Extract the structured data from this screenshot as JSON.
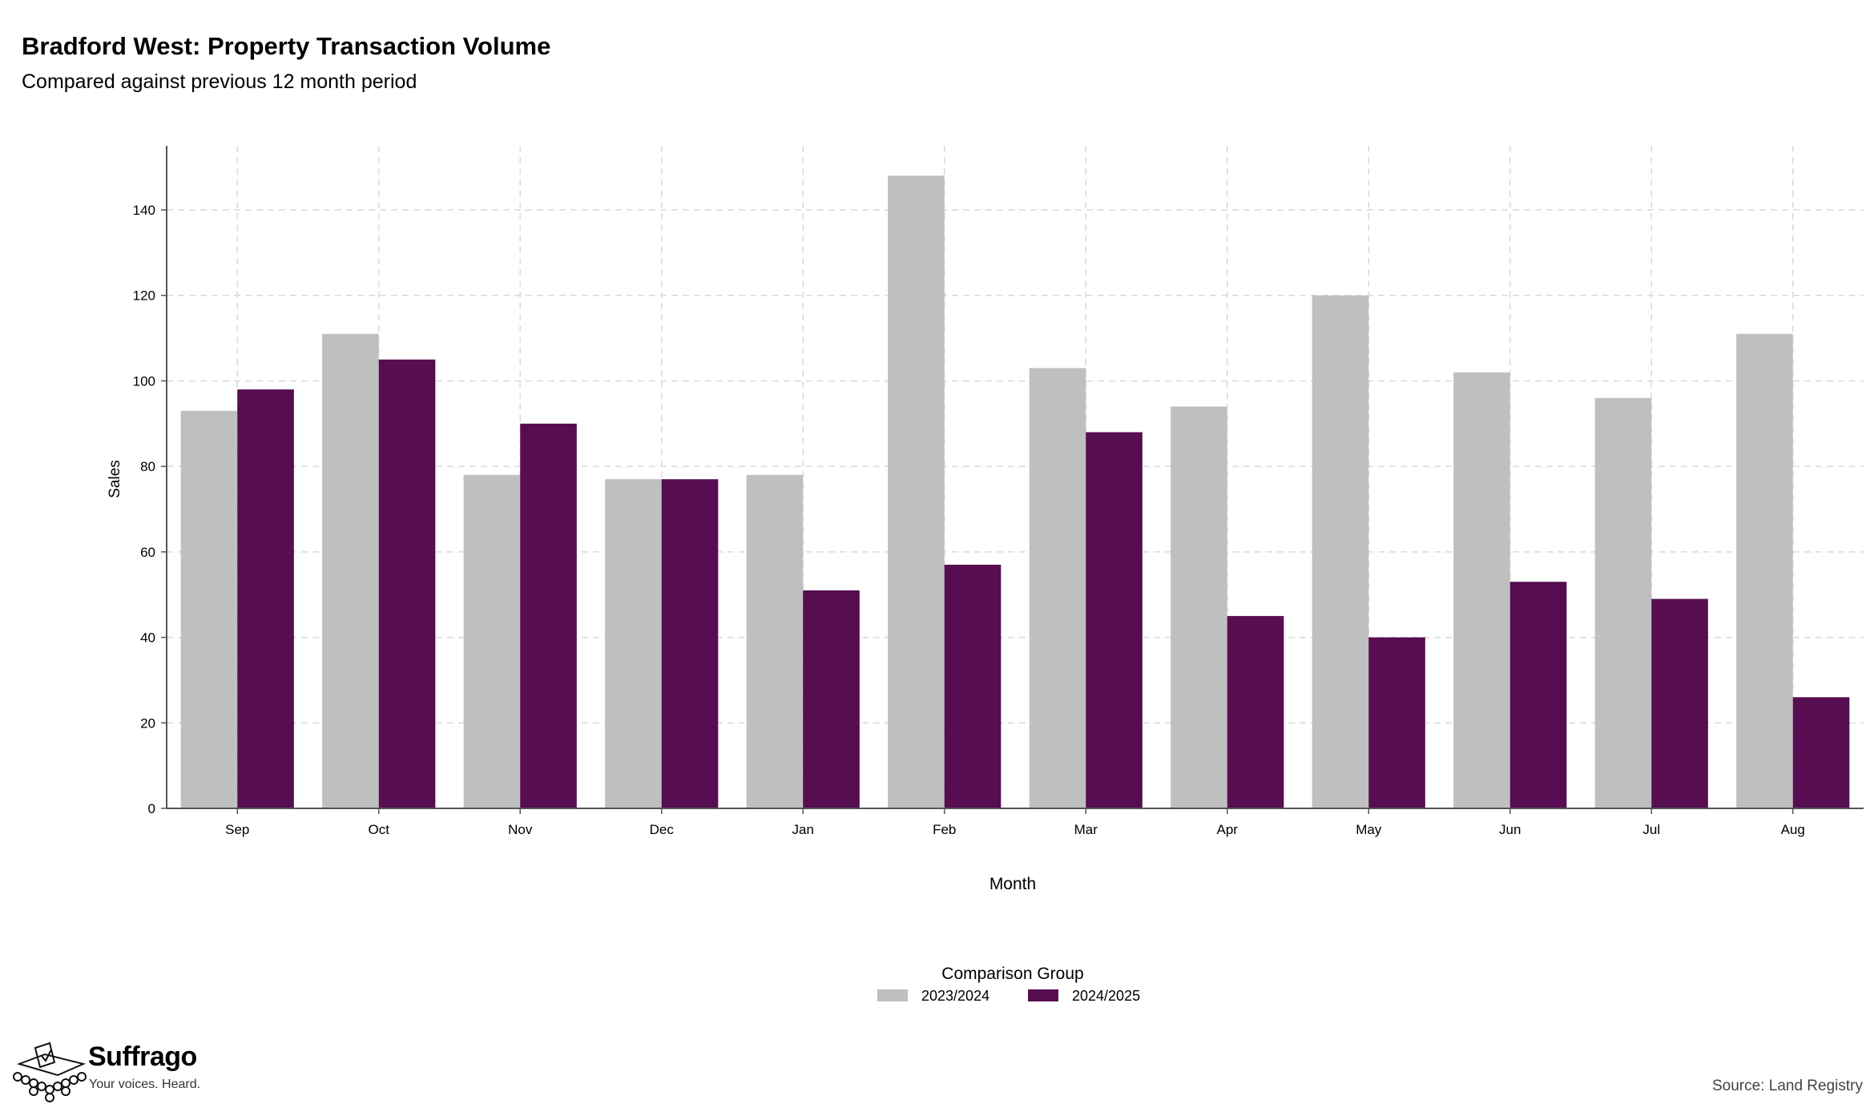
{
  "header": {
    "title": "Bradford West: Property Transaction Volume",
    "subtitle": "Compared against previous 12 month period"
  },
  "chart_data": {
    "type": "bar",
    "title": "Bradford West: Property Transaction Volume",
    "subtitle": "Compared against previous 12 month period",
    "xlabel": "Month",
    "ylabel": "Sales",
    "categories": [
      "Sep",
      "Oct",
      "Nov",
      "Dec",
      "Jan",
      "Feb",
      "Mar",
      "Apr",
      "May",
      "Jun",
      "Jul",
      "Aug"
    ],
    "series": [
      {
        "name": "2023/2024",
        "color": "#bfbfbf",
        "values": [
          93,
          111,
          78,
          77,
          78,
          148,
          103,
          94,
          120,
          102,
          96,
          111
        ]
      },
      {
        "name": "2024/2025",
        "color": "#560d51",
        "values": [
          98,
          105,
          90,
          77,
          51,
          57,
          88,
          45,
          40,
          53,
          49,
          26
        ]
      }
    ],
    "ylim": [
      0,
      155
    ],
    "yticks": [
      0,
      20,
      40,
      60,
      80,
      100,
      120,
      140
    ],
    "grid": true,
    "legend": {
      "title": "Comparison Group",
      "position": "bottom"
    }
  },
  "footer": {
    "brand_name": "Suffrago",
    "brand_tagline": "Your voices. Heard.",
    "source": "Source: Land Registry"
  }
}
